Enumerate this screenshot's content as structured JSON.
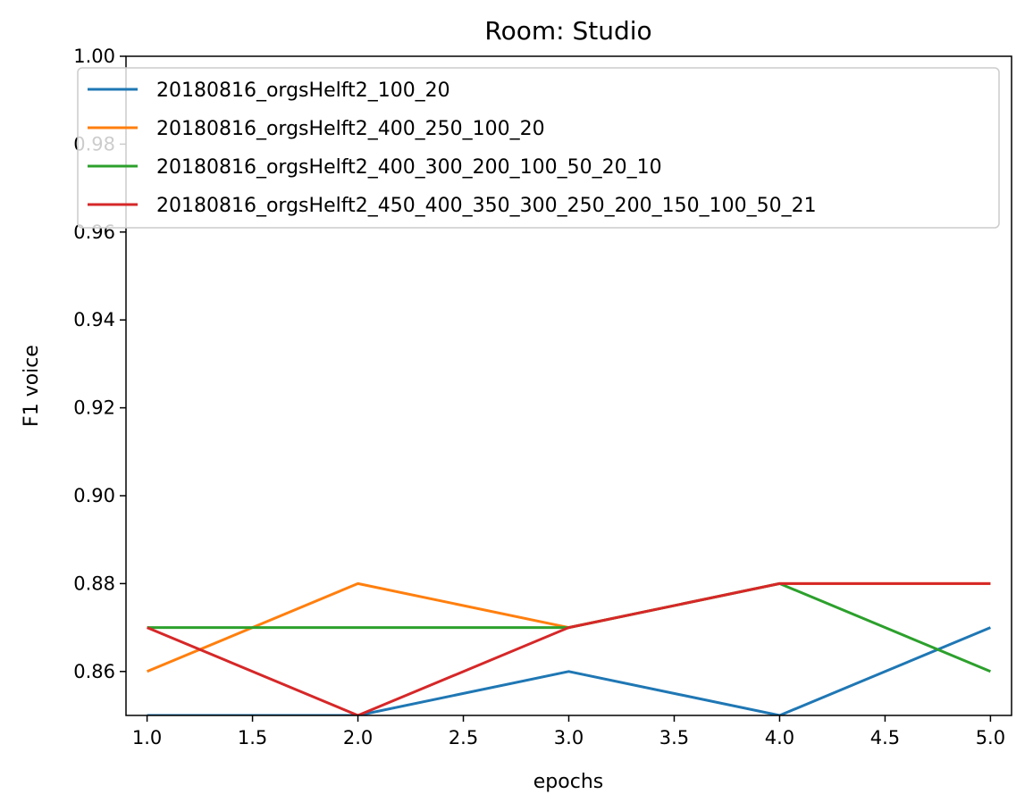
{
  "chart_data": {
    "type": "line",
    "title": "Room: Studio",
    "xlabel": "epochs",
    "ylabel": "F1 voice",
    "xlim": [
      0.9,
      5.1
    ],
    "ylim": [
      0.85,
      1.0
    ],
    "xticks": [
      "1.0",
      "1.5",
      "2.0",
      "2.5",
      "3.0",
      "3.5",
      "4.0",
      "4.5",
      "5.0"
    ],
    "yticks": [
      "0.86",
      "0.88",
      "0.90",
      "0.92",
      "0.94",
      "0.96",
      "0.98",
      "1.00"
    ],
    "grid": false,
    "legend_position": "top",
    "x": [
      1,
      2,
      3,
      4,
      5
    ],
    "series": [
      {
        "name": "20180816_orgsHelft2_100_20",
        "color": "#1f77b4",
        "values": [
          0.85,
          0.85,
          0.86,
          0.85,
          0.87
        ]
      },
      {
        "name": "20180816_orgsHelft2_400_250_100_20",
        "color": "#ff7f0e",
        "values": [
          0.86,
          0.88,
          0.87,
          0.88,
          0.88
        ]
      },
      {
        "name": "20180816_orgsHelft2_400_300_200_100_50_20_10",
        "color": "#2ca02c",
        "values": [
          0.87,
          0.87,
          0.87,
          0.88,
          0.86
        ]
      },
      {
        "name": "20180816_orgsHelft2_450_400_350_300_250_200_150_100_50_21",
        "color": "#d62728",
        "values": [
          0.87,
          0.85,
          0.87,
          0.88,
          0.88
        ]
      }
    ]
  }
}
